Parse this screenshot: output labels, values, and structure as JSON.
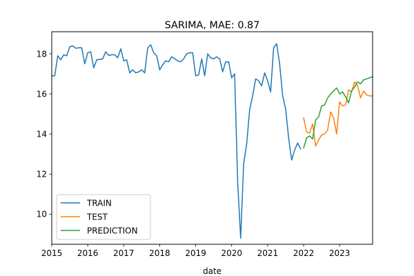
{
  "chart_data": {
    "type": "line",
    "title": "SARIMA, MAE: 0.87",
    "xlabel": "date",
    "ylabel": "",
    "x_unit": "year",
    "xlim": [
      2015.0,
      2023.917
    ],
    "ylim": [
      8.5,
      19.1
    ],
    "x_ticks": [
      2015,
      2016,
      2017,
      2018,
      2019,
      2020,
      2021,
      2022,
      2023
    ],
    "x_tick_labels": [
      "2015",
      "2016",
      "2017",
      "2018",
      "2019",
      "2020",
      "2021",
      "2022",
      "2023"
    ],
    "y_ticks": [
      10,
      12,
      14,
      16,
      18
    ],
    "y_tick_labels": [
      "10",
      "12",
      "14",
      "16",
      "18"
    ],
    "grid": false,
    "legend_position": "lower-left",
    "series": [
      {
        "name": "TRAIN",
        "color": "#1f77b4",
        "x": [
          2015.0,
          2015.083,
          2015.167,
          2015.25,
          2015.333,
          2015.417,
          2015.5,
          2015.583,
          2015.667,
          2015.75,
          2015.833,
          2015.917,
          2016.0,
          2016.083,
          2016.167,
          2016.25,
          2016.333,
          2016.417,
          2016.5,
          2016.583,
          2016.667,
          2016.75,
          2016.833,
          2016.917,
          2017.0,
          2017.083,
          2017.167,
          2017.25,
          2017.333,
          2017.417,
          2017.5,
          2017.583,
          2017.667,
          2017.75,
          2017.833,
          2017.917,
          2018.0,
          2018.083,
          2018.167,
          2018.25,
          2018.333,
          2018.417,
          2018.5,
          2018.583,
          2018.667,
          2018.75,
          2018.833,
          2018.917,
          2019.0,
          2019.083,
          2019.167,
          2019.25,
          2019.333,
          2019.417,
          2019.5,
          2019.583,
          2019.667,
          2019.75,
          2019.833,
          2019.917,
          2020.0,
          2020.083,
          2020.167,
          2020.25,
          2020.333,
          2020.417,
          2020.5,
          2020.583,
          2020.667,
          2020.75,
          2020.833,
          2020.917,
          2021.0,
          2021.083,
          2021.167,
          2021.25,
          2021.333,
          2021.417,
          2021.5,
          2021.583,
          2021.667,
          2021.75,
          2021.833,
          2021.917
        ],
        "y": [
          16.9,
          16.9,
          17.9,
          17.7,
          17.95,
          17.9,
          18.35,
          18.4,
          18.28,
          18.3,
          18.3,
          17.5,
          18.05,
          18.1,
          17.3,
          17.7,
          17.72,
          17.75,
          18.1,
          17.92,
          17.95,
          17.95,
          17.8,
          18.25,
          17.65,
          17.7,
          17.05,
          17.2,
          17.05,
          17.1,
          17.2,
          17.05,
          18.3,
          18.45,
          18.05,
          17.9,
          17.2,
          17.45,
          17.65,
          17.6,
          17.85,
          17.75,
          17.65,
          17.6,
          17.75,
          18.0,
          18.05,
          18.05,
          16.9,
          16.95,
          17.75,
          16.9,
          18.0,
          17.8,
          17.75,
          17.85,
          17.75,
          17.1,
          17.6,
          17.6,
          16.8,
          17.0,
          11.6,
          8.8,
          12.5,
          13.5,
          15.2,
          15.9,
          16.75,
          16.65,
          16.4,
          17.05,
          16.65,
          16.1,
          18.3,
          18.5,
          17.5,
          15.9,
          15.25,
          13.8,
          12.7,
          13.2,
          13.55,
          13.25
        ]
      },
      {
        "name": "TEST",
        "color": "#ff7f0e",
        "x": [
          2022.0,
          2022.083,
          2022.167,
          2022.25,
          2022.333,
          2022.417,
          2022.5,
          2022.583,
          2022.667,
          2022.75,
          2022.833,
          2022.917,
          2023.0,
          2023.083,
          2023.167,
          2023.25,
          2023.333,
          2023.417,
          2023.5,
          2023.583,
          2023.667,
          2023.75,
          2023.833,
          2023.917
        ],
        "y": [
          14.8,
          14.1,
          14.05,
          14.5,
          13.4,
          13.7,
          13.95,
          14.0,
          14.2,
          15.1,
          14.8,
          14.0,
          15.6,
          15.4,
          15.45,
          16.2,
          16.1,
          16.6,
          16.4,
          15.8,
          16.15,
          15.95,
          15.9,
          15.9
        ]
      },
      {
        "name": "PREDICTION",
        "color": "#2ca02c",
        "x": [
          2022.0,
          2022.083,
          2022.167,
          2022.25,
          2022.333,
          2022.417,
          2022.5,
          2022.583,
          2022.667,
          2022.75,
          2022.833,
          2022.917,
          2023.0,
          2023.083,
          2023.167,
          2023.25,
          2023.333,
          2023.417,
          2023.5,
          2023.583,
          2023.667,
          2023.75,
          2023.833,
          2023.917
        ],
        "y": [
          13.3,
          13.8,
          13.9,
          13.75,
          14.7,
          14.85,
          15.4,
          15.45,
          15.8,
          16.0,
          16.15,
          16.3,
          16.0,
          16.1,
          15.85,
          15.55,
          16.15,
          16.35,
          16.6,
          16.5,
          16.7,
          16.75,
          16.8,
          16.85
        ]
      }
    ]
  }
}
